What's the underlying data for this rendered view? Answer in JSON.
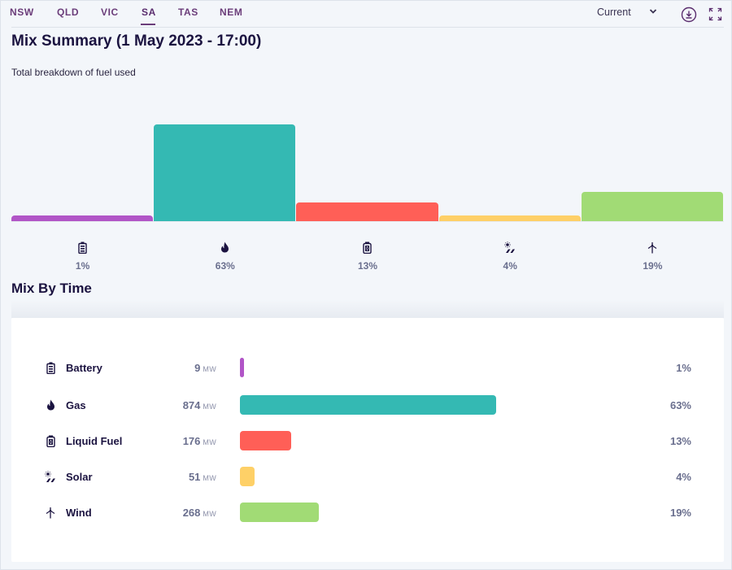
{
  "nav": {
    "tabs": [
      "NSW",
      "QLD",
      "VIC",
      "SA",
      "TAS",
      "NEM"
    ],
    "active_tab": "SA",
    "select_value": "Current"
  },
  "summary": {
    "title": "Mix Summary (1 May 2023 - 17:00)",
    "subtitle": "Total breakdown of fuel used"
  },
  "section_title": "Mix By Time",
  "colors": {
    "battery": "#b155c7",
    "gas": "#34b9b3",
    "liquid_fuel": "#ff5f57",
    "solar": "#fed067",
    "wind": "#a1db75"
  },
  "fuels": [
    {
      "key": "battery",
      "name": "Battery",
      "icon": "battery-icon",
      "mw": "9",
      "pct": "1%"
    },
    {
      "key": "gas",
      "name": "Gas",
      "icon": "flame-icon",
      "mw": "874",
      "pct": "63%"
    },
    {
      "key": "liquid_fuel",
      "name": "Liquid Fuel",
      "icon": "fuel-can-icon",
      "mw": "176",
      "pct": "13%"
    },
    {
      "key": "solar",
      "name": "Solar",
      "icon": "solar-icon",
      "mw": "51",
      "pct": "4%"
    },
    {
      "key": "wind",
      "name": "Wind",
      "icon": "wind-turbine-icon",
      "mw": "268",
      "pct": "19%"
    }
  ],
  "unit": "MW",
  "chart_data": {
    "type": "bar",
    "categories": [
      "Battery",
      "Gas",
      "Liquid Fuel",
      "Solar",
      "Wind"
    ],
    "values": [
      9,
      874,
      176,
      51,
      268
    ],
    "percentages": [
      1,
      63,
      13,
      4,
      19
    ]
  }
}
